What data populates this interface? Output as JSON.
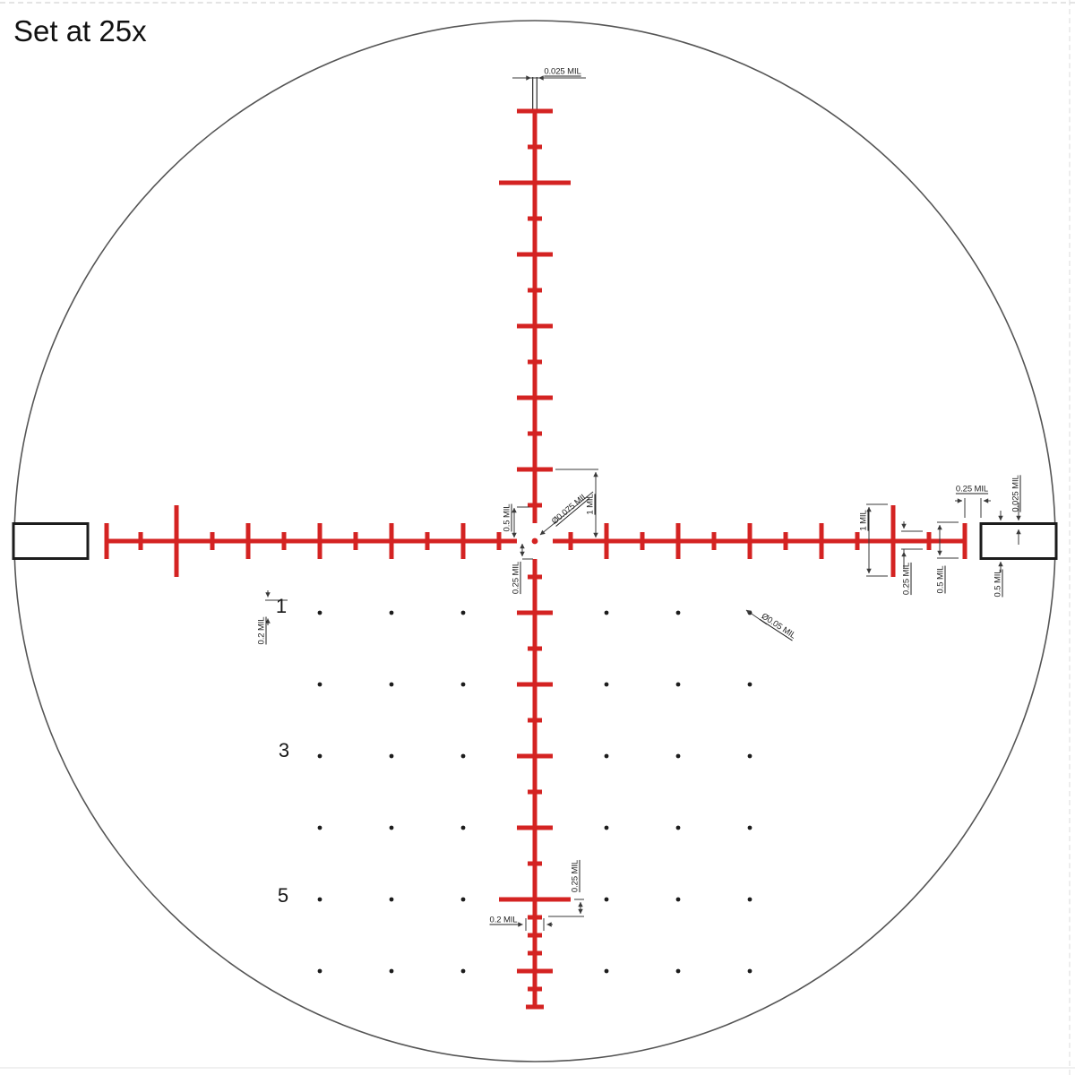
{
  "title": "Set at 25x",
  "colors": {
    "reticle": "#d42322",
    "ink": "#1c1c1c",
    "dimension_lines": "#3a3a3a",
    "background": "#ffffff"
  },
  "labels": {
    "top_post_line_width": "0.025 MIL",
    "center_upper_tick_offset": "0.5 MIL",
    "center_dot_diameter": "Ø0.075 MIL",
    "center_right_tick_offset": "1 MIL",
    "center_lower_gap": "0.25 MIL",
    "right_major_tick_height": "1 MIL",
    "right_minor_tick_height": "0.25 MIL",
    "right_end_tick_height": "0.5 MIL",
    "right_bar_gap": "0.25 MIL",
    "right_bar_edge_width": "0.025 MIL",
    "right_bar_height": "0.5 MIL",
    "lower_post_fine_spacing": "0.25 MIL",
    "lower_post_tick_width": "0.2 MIL",
    "numeral_height": "0.2 MIL",
    "dot_diameter": "Ø0.05 MIL"
  },
  "row_numbers": [
    "1",
    "3",
    "5"
  ]
}
